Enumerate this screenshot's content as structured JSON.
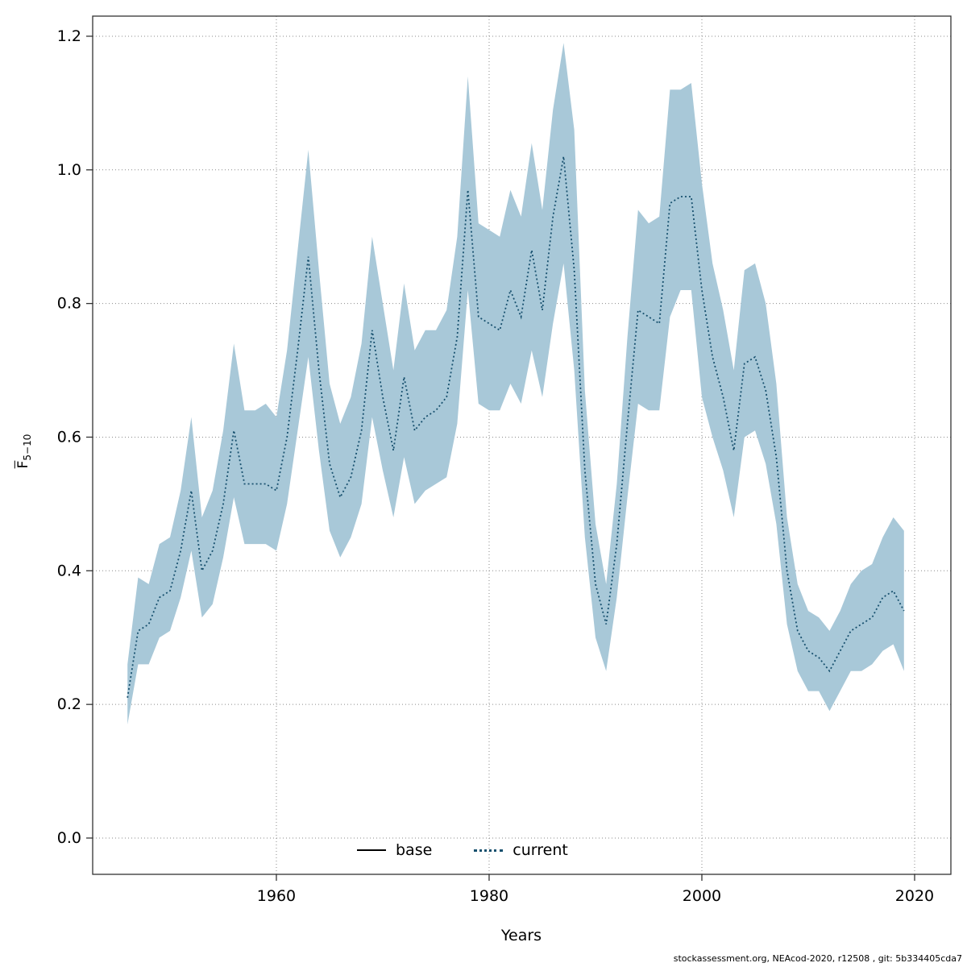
{
  "chart_data": {
    "type": "line",
    "title": "",
    "xlabel": "Years",
    "ylabel_main": "F",
    "ylabel_sub": "5−10",
    "grid": true,
    "grid_color": "#8a8a8a",
    "band_color": "#a8c8d8",
    "line_color": "#17506e",
    "axis_color": "#333333",
    "xlim": [
      1942.73,
      2023.41
    ],
    "ylim": [
      -0.0543,
      1.2301
    ],
    "x_ticks": [
      1960,
      1980,
      2000,
      2020
    ],
    "x_tick_labels": [
      "1960",
      "1980",
      "2000",
      "2020"
    ],
    "y_ticks": [
      0.0,
      0.2,
      0.4,
      0.6,
      0.8,
      1.0,
      1.2
    ],
    "y_tick_labels": [
      "0.0",
      "0.2",
      "0.4",
      "0.6",
      "0.8",
      "1.0",
      "1.2"
    ],
    "legend": [
      {
        "label": "base",
        "style": "solid",
        "color": "#000000"
      },
      {
        "label": "current",
        "style": "dotted",
        "color": "#17506e"
      }
    ],
    "x": [
      1946,
      1947,
      1948,
      1949,
      1950,
      1951,
      1952,
      1953,
      1954,
      1955,
      1956,
      1957,
      1958,
      1959,
      1960,
      1961,
      1962,
      1963,
      1964,
      1965,
      1966,
      1967,
      1968,
      1969,
      1970,
      1971,
      1972,
      1973,
      1974,
      1975,
      1976,
      1977,
      1978,
      1979,
      1980,
      1981,
      1982,
      1983,
      1984,
      1985,
      1986,
      1987,
      1988,
      1989,
      1990,
      1991,
      1992,
      1993,
      1994,
      1995,
      1996,
      1997,
      1998,
      1999,
      2000,
      2001,
      2002,
      2003,
      2004,
      2005,
      2006,
      2007,
      2008,
      2009,
      2010,
      2011,
      2012,
      2013,
      2014,
      2015,
      2016,
      2017,
      2018,
      2019
    ],
    "series": [
      {
        "name": "current",
        "values": [
          0.21,
          0.31,
          0.32,
          0.36,
          0.37,
          0.43,
          0.52,
          0.4,
          0.43,
          0.5,
          0.61,
          0.53,
          0.53,
          0.53,
          0.52,
          0.6,
          0.73,
          0.87,
          0.7,
          0.56,
          0.51,
          0.54,
          0.61,
          0.76,
          0.66,
          0.58,
          0.69,
          0.61,
          0.63,
          0.64,
          0.66,
          0.75,
          0.97,
          0.78,
          0.77,
          0.76,
          0.82,
          0.78,
          0.88,
          0.79,
          0.93,
          1.02,
          0.85,
          0.55,
          0.38,
          0.32,
          0.44,
          0.62,
          0.79,
          0.78,
          0.77,
          0.95,
          0.96,
          0.96,
          0.82,
          0.72,
          0.66,
          0.58,
          0.71,
          0.72,
          0.67,
          0.57,
          0.4,
          0.31,
          0.28,
          0.27,
          0.25,
          0.28,
          0.31,
          0.32,
          0.33,
          0.36,
          0.37,
          0.34
        ],
        "lower": [
          0.17,
          0.26,
          0.26,
          0.3,
          0.31,
          0.36,
          0.43,
          0.33,
          0.35,
          0.42,
          0.51,
          0.44,
          0.44,
          0.44,
          0.43,
          0.5,
          0.61,
          0.72,
          0.58,
          0.46,
          0.42,
          0.45,
          0.5,
          0.63,
          0.55,
          0.48,
          0.57,
          0.5,
          0.52,
          0.53,
          0.54,
          0.62,
          0.82,
          0.65,
          0.64,
          0.64,
          0.68,
          0.65,
          0.73,
          0.66,
          0.77,
          0.86,
          0.7,
          0.45,
          0.3,
          0.25,
          0.36,
          0.51,
          0.65,
          0.64,
          0.64,
          0.78,
          0.82,
          0.82,
          0.66,
          0.6,
          0.55,
          0.48,
          0.6,
          0.61,
          0.56,
          0.47,
          0.32,
          0.25,
          0.22,
          0.22,
          0.19,
          0.22,
          0.25,
          0.25,
          0.26,
          0.28,
          0.29,
          0.25
        ],
        "upper": [
          0.26,
          0.39,
          0.38,
          0.44,
          0.45,
          0.52,
          0.63,
          0.48,
          0.52,
          0.61,
          0.74,
          0.64,
          0.64,
          0.65,
          0.63,
          0.73,
          0.88,
          1.03,
          0.85,
          0.68,
          0.62,
          0.66,
          0.74,
          0.9,
          0.8,
          0.7,
          0.83,
          0.73,
          0.76,
          0.76,
          0.79,
          0.9,
          1.14,
          0.92,
          0.91,
          0.9,
          0.97,
          0.93,
          1.04,
          0.94,
          1.09,
          1.19,
          1.06,
          0.67,
          0.47,
          0.38,
          0.53,
          0.75,
          0.94,
          0.92,
          0.93,
          1.12,
          1.12,
          1.13,
          0.98,
          0.86,
          0.79,
          0.7,
          0.85,
          0.86,
          0.8,
          0.68,
          0.48,
          0.38,
          0.34,
          0.33,
          0.31,
          0.34,
          0.38,
          0.4,
          0.41,
          0.45,
          0.48,
          0.46
        ]
      }
    ]
  },
  "footer": {
    "text": "stockassessment.org, NEAcod-2020, r12508 , git: 5b334405cda7"
  }
}
